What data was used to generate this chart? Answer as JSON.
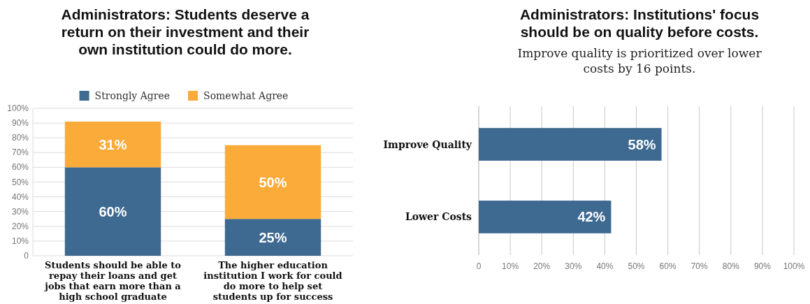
{
  "chart_data": [
    {
      "type": "bar",
      "title": "Administrators: Students deserve a return on their investment and their own institution could do more.",
      "categories": [
        "Students should be able to repay their loans and get jobs that earn more than a high school graduate",
        "The higher education institution I work for could do more to help set students up for success"
      ],
      "series": [
        {
          "name": "Strongly Agree",
          "color": "#3e6990",
          "values": [
            60,
            25
          ],
          "value_labels": [
            "60%",
            "25%"
          ]
        },
        {
          "name": "Somewhat Agree",
          "color": "#fbab3a",
          "values": [
            31,
            50
          ],
          "value_labels": [
            "31%",
            "50%"
          ]
        }
      ],
      "stacked": true,
      "ylim": [
        0,
        100
      ],
      "yticks": [
        {
          "value": 0,
          "label": "0"
        },
        {
          "value": 10,
          "label": "10%"
        },
        {
          "value": 20,
          "label": "20%"
        },
        {
          "value": 30,
          "label": "30%"
        },
        {
          "value": 40,
          "label": "40%"
        },
        {
          "value": 50,
          "label": "50%"
        },
        {
          "value": 60,
          "label": "60%"
        },
        {
          "value": 70,
          "label": "70%"
        },
        {
          "value": 80,
          "label": "80%"
        },
        {
          "value": 90,
          "label": "90%"
        },
        {
          "value": 100,
          "label": "100%"
        }
      ],
      "grid": "y",
      "legend": "top"
    },
    {
      "type": "bar",
      "orientation": "horizontal",
      "title": "Administrators: Institutions' focus should be on quality before costs.",
      "subtitle": "Improve quality is prioritized over lower costs by 16 points.",
      "categories": [
        "Improve Quality",
        "Lower Costs"
      ],
      "values": [
        58,
        42
      ],
      "color": "#3e6990",
      "value_labels": [
        "58%",
        "42%"
      ],
      "xlim": [
        0,
        100
      ],
      "xticks": [
        {
          "value": 0,
          "label": "0"
        },
        {
          "value": 10,
          "label": "10%"
        },
        {
          "value": 20,
          "label": "20%"
        },
        {
          "value": 30,
          "label": "30%"
        },
        {
          "value": 40,
          "label": "40%"
        },
        {
          "value": 50,
          "label": "50%"
        },
        {
          "value": 60,
          "label": "60%"
        },
        {
          "value": 70,
          "label": "70%"
        },
        {
          "value": 80,
          "label": "80%"
        },
        {
          "value": 90,
          "label": "90%"
        },
        {
          "value": 100,
          "label": "100%"
        }
      ],
      "grid": "x"
    }
  ]
}
